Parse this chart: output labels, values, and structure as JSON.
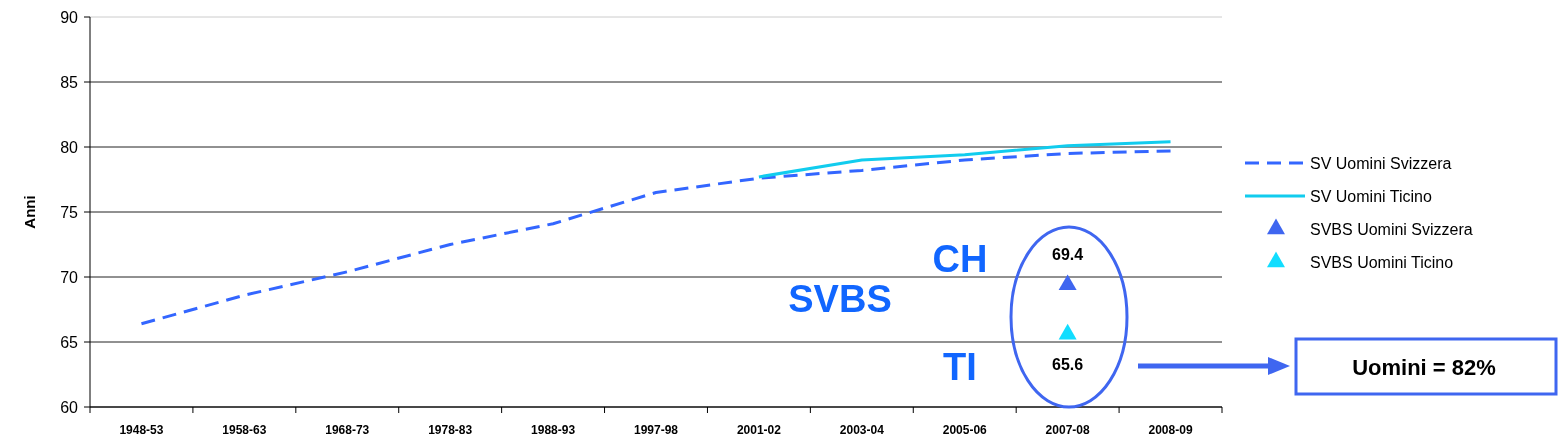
{
  "chart_data": {
    "type": "line",
    "ylabel": "Anni",
    "categories": [
      "1948-53",
      "1958-63",
      "1968-73",
      "1978-83",
      "1988-93",
      "1997-98",
      "2001-02",
      "2003-04",
      "2005-06",
      "2007-08",
      "2008-09"
    ],
    "ylim": [
      60,
      90
    ],
    "yticks": [
      60,
      65,
      70,
      75,
      80,
      85,
      90
    ],
    "grid": "y",
    "legend": "right",
    "series": [
      {
        "name": "SV Uomini Svizzera",
        "line_style": "dashed",
        "marker": "none",
        "color": "#3366ff",
        "values": [
          66.4,
          68.6,
          70.4,
          72.5,
          74.1,
          76.5,
          77.6,
          78.2,
          79.0,
          79.5,
          79.7
        ]
      },
      {
        "name": "SV Uomini Ticino",
        "line_style": "solid",
        "marker": "none",
        "color": "#11ccee",
        "values": [
          null,
          null,
          null,
          null,
          null,
          null,
          77.7,
          79.0,
          79.4,
          80.1,
          80.4
        ]
      },
      {
        "name": "SVBS Uomini Svizzera",
        "type": "scatter",
        "marker": "triangle",
        "color": "#3f66f0",
        "values": [
          null,
          null,
          null,
          null,
          null,
          null,
          null,
          null,
          null,
          69.4,
          null
        ],
        "value_labels": [
          null,
          null,
          null,
          null,
          null,
          null,
          null,
          null,
          null,
          "69.4",
          null
        ]
      },
      {
        "name": "SVBS Uomini Ticino",
        "type": "scatter",
        "marker": "triangle",
        "color": "#11ddff",
        "values": [
          null,
          null,
          null,
          null,
          null,
          null,
          null,
          null,
          null,
          65.6,
          null
        ],
        "value_labels": [
          null,
          null,
          null,
          null,
          null,
          null,
          null,
          null,
          null,
          "65.6",
          null
        ]
      }
    ],
    "annotations": [
      "CH",
      "SVBS",
      "TI",
      "Uomini = 82%"
    ]
  }
}
